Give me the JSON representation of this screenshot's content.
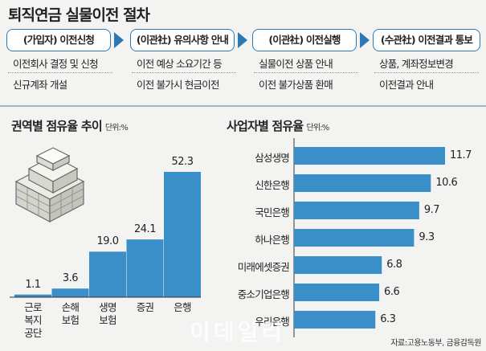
{
  "title": "퇴직연금 실물이전 절차",
  "steps": [
    {
      "head": "(가입자) 이전신청",
      "items": [
        "이전회사 결정 및 신청",
        "신규계좌 개설"
      ]
    },
    {
      "head": "(이관社) 유의사항 안내",
      "items": [
        "이전 예상 소요기간 등",
        "이전 불가시 현금이전"
      ]
    },
    {
      "head": "(이관社) 이전실행",
      "items": [
        "실물이전 상품 안내",
        "이전 불가상품 환매"
      ]
    },
    {
      "head": "(수관社) 이전결과 통보",
      "items": [
        "상품, 계좌정보변경",
        "이전결과 안내"
      ]
    }
  ],
  "left_chart": {
    "title": "권역별 점유율 추이",
    "unit": "단위:%"
  },
  "right_chart": {
    "title": "사업자별 점유율",
    "unit": "단위:%"
  },
  "source": "자료:고용노동부, 금융감독원",
  "watermark": "이데일리",
  "colors": {
    "accent": "#2b78b5",
    "bar": "#3a8fc9"
  },
  "chart_data": [
    {
      "type": "bar",
      "title": "권역별 점유율 추이",
      "unit": "단위:%",
      "categories": [
        "근로복지공단",
        "손해보험",
        "생명보험",
        "증권",
        "은행"
      ],
      "category_lines": [
        [
          "근로",
          "복지",
          "공단"
        ],
        [
          "손해",
          "보험"
        ],
        [
          "생명",
          "보험"
        ],
        [
          "증권"
        ],
        [
          "은행"
        ]
      ],
      "values": [
        1.1,
        3.6,
        19.0,
        24.1,
        52.3
      ],
      "value_labels": [
        "1.1",
        "3.6",
        "19.0",
        "24.1",
        "52.3"
      ],
      "ylim": [
        0,
        55
      ]
    },
    {
      "type": "bar",
      "orientation": "horizontal",
      "title": "사업자별 점유율",
      "unit": "단위:%",
      "categories": [
        "삼성생명",
        "신한은행",
        "국민은행",
        "하나은행",
        "미래에셋증권",
        "중소기업은행",
        "우리은행"
      ],
      "values": [
        11.7,
        10.6,
        9.7,
        9.3,
        6.8,
        6.6,
        6.3
      ],
      "value_labels": [
        "11.7",
        "10.6",
        "9.7",
        "9.3",
        "6.8",
        "6.6",
        "6.3"
      ],
      "xlim": [
        0,
        12
      ]
    }
  ]
}
